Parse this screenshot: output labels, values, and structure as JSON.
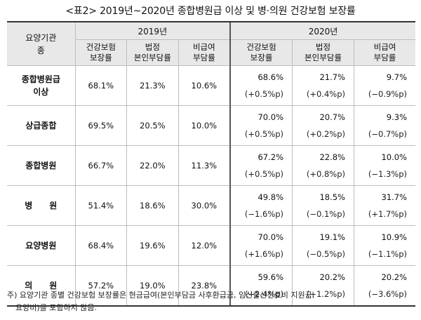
{
  "title": "<표2> 2019년~2020년 종합병원급 이상 및 병·의원 건강보험 보장률",
  "header": {
    "category_label_1": "요양기관",
    "category_label_2": "종",
    "year_2019": "2019년",
    "year_2020": "2020년",
    "col_coverage_1": "건강보험",
    "col_coverage_2": "보장률",
    "col_copay_1": "법정",
    "col_copay_2": "본인부담률",
    "col_noncovered_1": "비급여",
    "col_noncovered_2": "부담률"
  },
  "rows": [
    {
      "label_1": "종합병원급",
      "label_2": "이상",
      "y2019": [
        "68.1%",
        "21.3%",
        "10.6%"
      ],
      "y2020": [
        "68.6%",
        "21.7%",
        "9.7%"
      ],
      "chg": [
        "(+0.5%p)",
        "(+0.4%p)",
        "(−0.9%p)"
      ]
    },
    {
      "label_1": "상급종합",
      "label_2": "",
      "y2019": [
        "69.5%",
        "20.5%",
        "10.0%"
      ],
      "y2020": [
        "70.0%",
        "20.7%",
        "9.3%"
      ],
      "chg": [
        "(+0.5%p)",
        "(+0.2%p)",
        "(−0.7%p)"
      ]
    },
    {
      "label_1": "종합병원",
      "label_2": "",
      "y2019": [
        "66.7%",
        "22.0%",
        "11.3%"
      ],
      "y2020": [
        "67.2%",
        "22.8%",
        "10.0%"
      ],
      "chg": [
        "(+0.5%p)",
        "(+0.8%p)",
        "(−1.3%p)"
      ]
    },
    {
      "label_1": "병　　원",
      "label_2": "",
      "y2019": [
        "51.4%",
        "18.6%",
        "30.0%"
      ],
      "y2020": [
        "49.8%",
        "18.5%",
        "31.7%"
      ],
      "chg": [
        "(−1.6%p)",
        "(−0.1%p)",
        "(+1.7%p)"
      ]
    },
    {
      "label_1": "요양병원",
      "label_2": "",
      "y2019": [
        "68.4%",
        "19.6%",
        "12.0%"
      ],
      "y2020": [
        "70.0%",
        "19.1%",
        "10.9%"
      ],
      "chg": [
        "(+1.6%p)",
        "(−0.5%p)",
        "(−1.1%p)"
      ]
    },
    {
      "label_1": "의　　원",
      "label_2": "",
      "y2019": [
        "57.2%",
        "19.0%",
        "23.8%"
      ],
      "y2020": [
        "59.6%",
        "20.2%",
        "20.2%"
      ],
      "chg": [
        "(+2.4%p)",
        "(+1.2%p)",
        "(−3.6%p)"
      ]
    }
  ],
  "note": {
    "line_1": "주)  요양기관 종별 건강보험 보장률은 현금급여(본인부담금 사후환급금, 임신출산진료비 지원금,",
    "line_2": "요양비)를 포함하지 않음."
  }
}
